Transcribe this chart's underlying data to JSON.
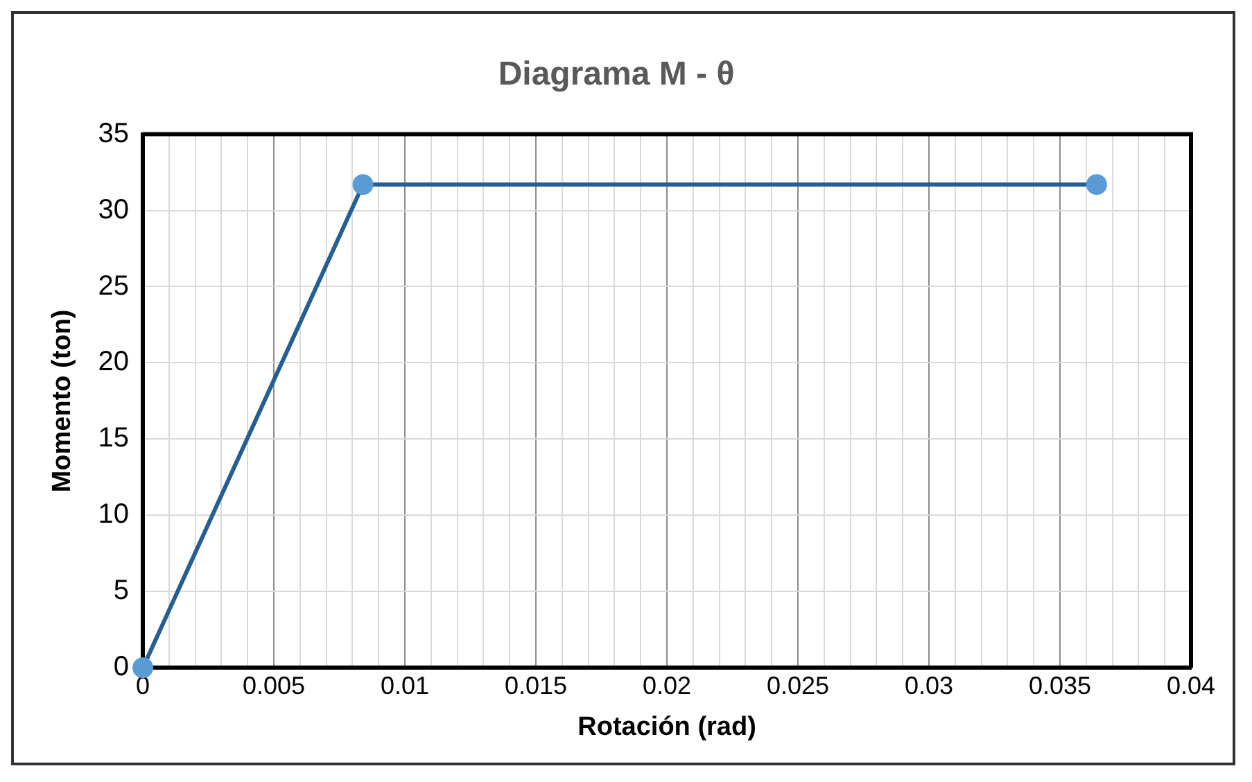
{
  "chart_data": {
    "type": "line",
    "title": "Diagrama M - θ",
    "xlabel": "Rotación (rad)",
    "ylabel": "Momento (ton)",
    "x": [
      0,
      0.0084,
      0.0364
    ],
    "series": [
      {
        "color": "#255e91",
        "values": [
          0,
          31.7,
          31.7
        ]
      }
    ],
    "marker": "circle",
    "line_style": "solid",
    "grid": true,
    "legend": false,
    "xlim": [
      0,
      0.04
    ],
    "xticks": [
      0,
      {
        "value": 0.001,
        "label": null
      },
      {
        "value": 0.002,
        "label": null
      },
      {
        "value": 0.003,
        "label": null
      },
      {
        "value": 0.004,
        "label": null
      },
      0.005,
      {
        "value": 0.006,
        "label": null
      },
      {
        "value": 0.007,
        "label": null
      },
      {
        "value": 0.008,
        "label": null
      },
      {
        "value": 0.009,
        "label": null
      },
      0.01,
      {
        "value": 0.011,
        "label": null
      },
      {
        "value": 0.012,
        "label": null
      },
      {
        "value": 0.013,
        "label": null
      },
      {
        "value": 0.014,
        "label": null
      },
      0.015,
      {
        "value": 0.016,
        "label": null
      },
      {
        "value": 0.017,
        "label": null
      },
      {
        "value": 0.018,
        "label": null
      },
      {
        "value": 0.019,
        "label": null
      },
      0.02,
      {
        "value": 0.021,
        "label": null
      },
      {
        "value": 0.022,
        "label": null
      },
      {
        "value": 0.023,
        "label": null
      },
      {
        "value": 0.024,
        "label": null
      },
      0.025,
      {
        "value": 0.026,
        "label": null
      },
      {
        "value": 0.027,
        "label": null
      },
      {
        "value": 0.028,
        "label": null
      },
      {
        "value": 0.029,
        "label": null
      },
      0.03,
      {
        "value": 0.031,
        "label": null
      },
      {
        "value": 0.032,
        "label": null
      },
      {
        "value": 0.033,
        "label": null
      },
      {
        "value": 0.034,
        "label": null
      },
      0.035,
      {
        "value": 0.036,
        "label": null
      },
      {
        "value": 0.037,
        "label": null
      },
      {
        "value": 0.038,
        "label": null
      },
      {
        "value": 0.039,
        "label": null
      },
      0.04
    ],
    "ylim": [
      0,
      35
    ],
    "yticks": [
      0,
      5,
      10,
      15,
      20,
      25,
      30,
      35
    ]
  }
}
